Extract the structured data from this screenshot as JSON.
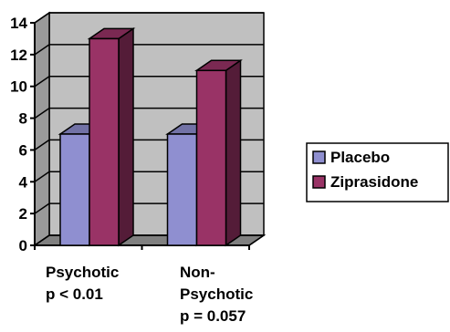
{
  "chart_data": {
    "type": "bar",
    "categories": [
      [
        "Psychotic",
        "p < 0.01"
      ],
      [
        "Non-",
        "Psychotic",
        "p = 0.057"
      ]
    ],
    "series": [
      {
        "name": "Placebo",
        "values": [
          7,
          7
        ],
        "color": "#8f8fd0"
      },
      {
        "name": "Ziprasidone",
        "values": [
          13,
          11
        ],
        "color": "#993366"
      }
    ],
    "ylim": [
      0,
      14
    ],
    "yticks": [
      "0",
      "2",
      "4",
      "6",
      "8",
      "10",
      "12",
      "14"
    ],
    "grid": true,
    "wall_color": "#c0c0c0",
    "legend_position": "right"
  }
}
